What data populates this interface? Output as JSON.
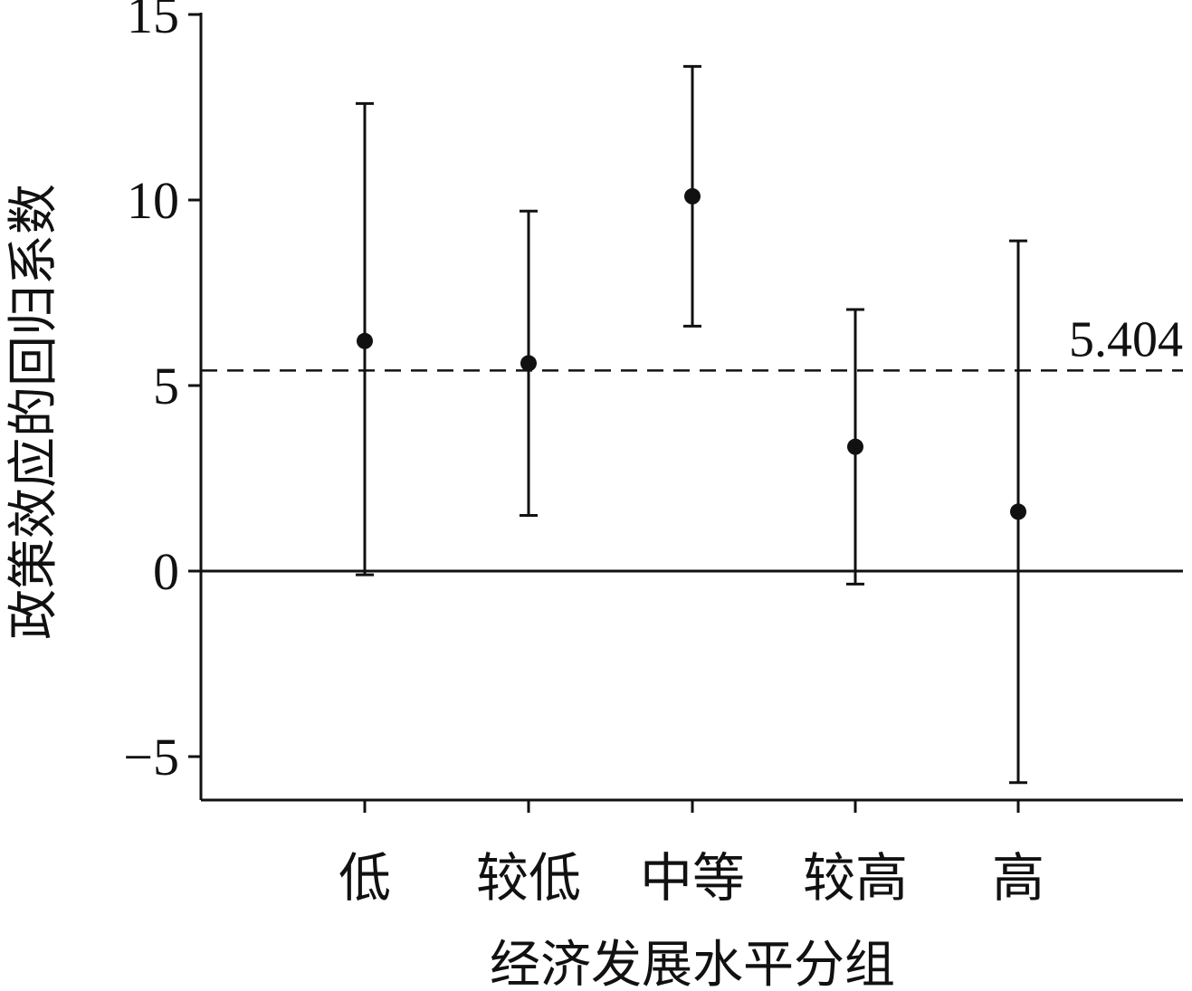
{
  "chart_data": {
    "type": "scatter",
    "style": "point-with-error-bars",
    "xlabel": "经济发展水平分组",
    "ylabel": "政策效应的回归系数",
    "categories": [
      "低",
      "较低",
      "中等",
      "较高",
      "高"
    ],
    "series": [
      {
        "estimates": [
          6.2,
          5.6,
          10.1,
          3.35,
          1.6
        ],
        "ci_upper": [
          12.6,
          9.7,
          13.6,
          7.05,
          8.9
        ],
        "ci_lower": [
          -0.1,
          1.5,
          6.6,
          -0.35,
          -5.7
        ]
      }
    ],
    "reference_line": {
      "value": 5.404,
      "label": "5.404",
      "style": "dashed"
    },
    "zero_line": 0,
    "yticks": [
      15,
      10,
      5,
      0,
      -5
    ],
    "ytick_labels": [
      "15",
      "10",
      "5",
      "0",
      "−5"
    ],
    "ylim": [
      -6.2,
      15
    ],
    "grid": false,
    "legend": "none",
    "colors": {
      "ink": "#111111",
      "background": "#ffffff"
    }
  }
}
